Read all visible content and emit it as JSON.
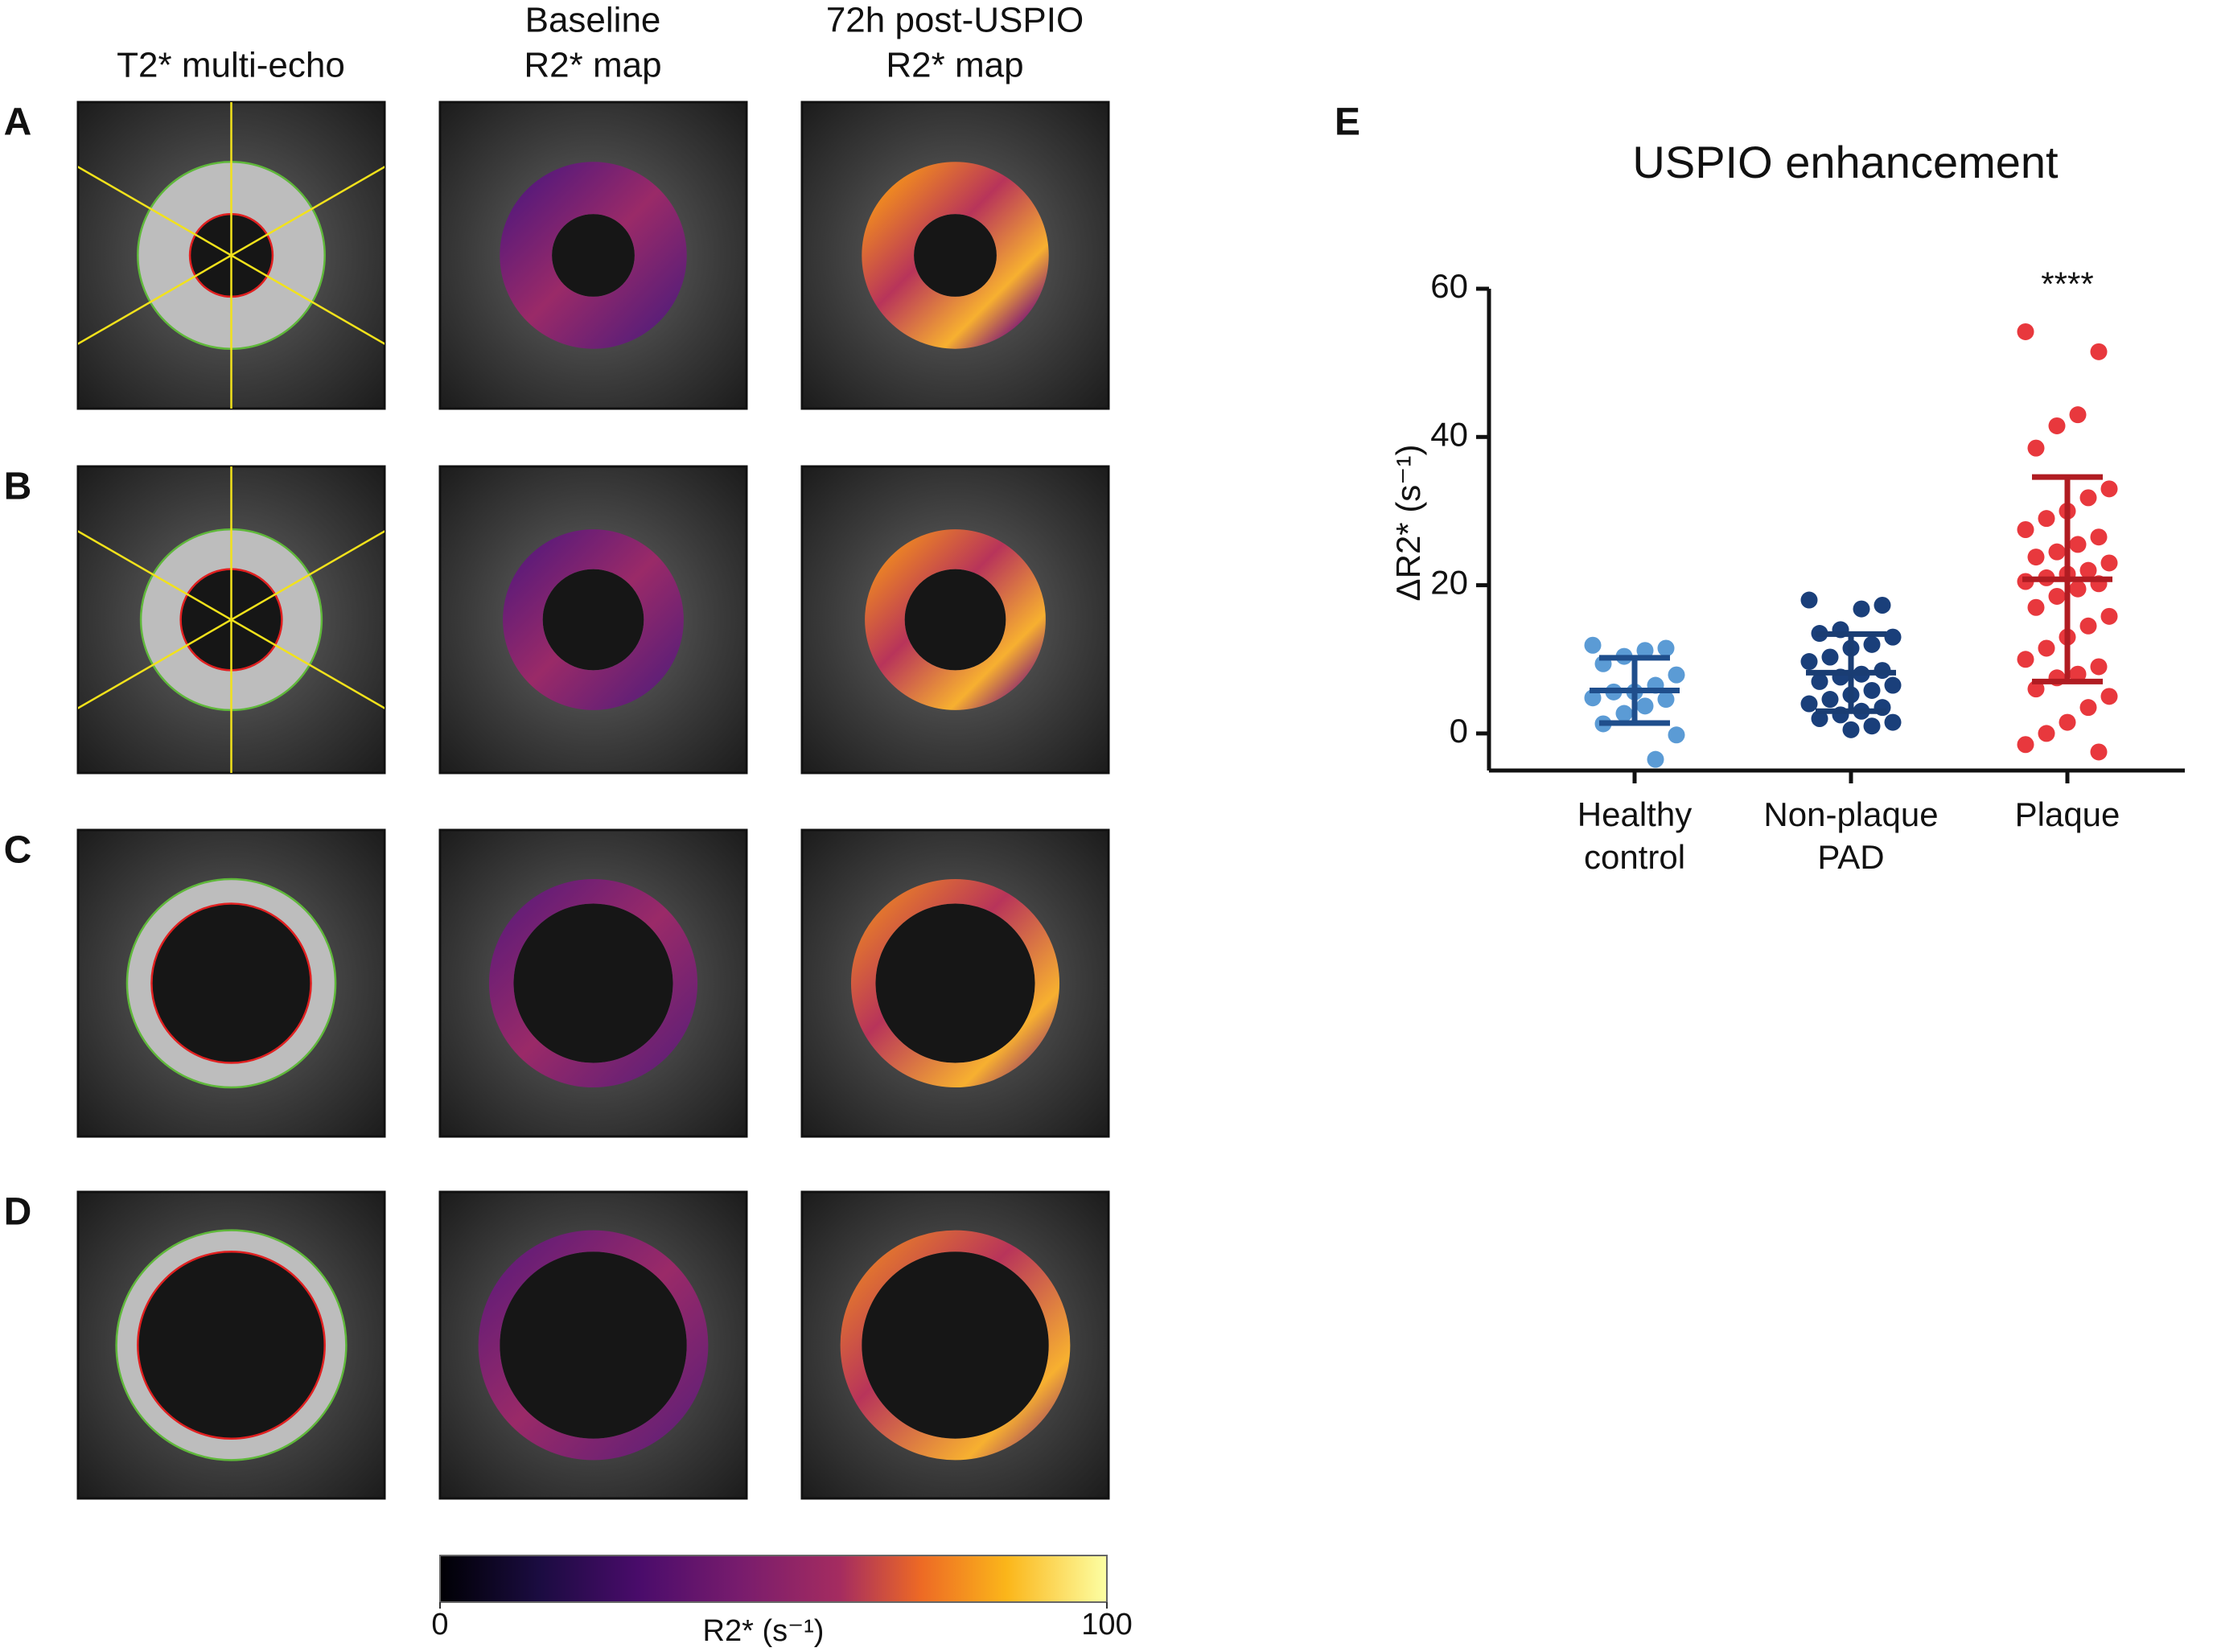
{
  "column_headers": [
    [
      "T2* multi-echo"
    ],
    [
      "Baseline",
      "R2* map"
    ],
    [
      "72h post-USPIO",
      "R2* map"
    ]
  ],
  "row_labels": [
    "A",
    "B",
    "C",
    "D"
  ],
  "colorbar": {
    "label": "R2* (s⁻¹)",
    "lim": [
      0,
      100
    ],
    "ticks": [
      0,
      100
    ]
  },
  "chart_data": {
    "type": "strip",
    "panel_label": "E",
    "title": "USPIO enhancement",
    "y_label": "ΔR2* (s⁻¹)",
    "categories": [
      "Healthy control",
      "Non-plaque PAD",
      "Plaque"
    ],
    "ylim": [
      -5,
      60
    ],
    "yticks": [
      0,
      20,
      40,
      60
    ],
    "series": [
      {
        "color": "#5b9bd5",
        "error_color": "#1f4e8c",
        "mean": 5.8,
        "sd": 4.4,
        "values": [
          11.9,
          11.5,
          11.2,
          10.4,
          9.4,
          7.9,
          6.5,
          5.6,
          5.6,
          4.8,
          4.6,
          3.7,
          2.7,
          1.3,
          -0.2,
          -3.5
        ]
      },
      {
        "color": "#1a3f7a",
        "error_color": "#1a3d73",
        "mean": 8.2,
        "sd": 5.2,
        "values": [
          18.0,
          17.3,
          16.8,
          14.0,
          13.5,
          13.0,
          12.0,
          11.5,
          10.3,
          9.7,
          8.5,
          8.0,
          7.6,
          7.0,
          6.5,
          5.8,
          5.2,
          4.6,
          4.0,
          3.5,
          3.0,
          2.5,
          2.0,
          1.5,
          1.0,
          0.5
        ]
      },
      {
        "color": "#e8383d",
        "error_color": "#b01c22",
        "mean": 20.8,
        "sd": 13.8,
        "annotation": "****",
        "values": [
          54.2,
          51.5,
          43.0,
          41.5,
          38.5,
          33.0,
          31.8,
          30.0,
          29.0,
          27.5,
          26.5,
          25.5,
          24.5,
          23.8,
          23.0,
          22.0,
          21.5,
          21.0,
          20.5,
          20.2,
          19.5,
          18.5,
          17.0,
          15.8,
          14.5,
          13.0,
          11.5,
          10.0,
          9.0,
          8.0,
          7.5,
          6.0,
          5.0,
          3.5,
          1.5,
          0.0,
          -1.5,
          -2.5
        ]
      }
    ]
  }
}
